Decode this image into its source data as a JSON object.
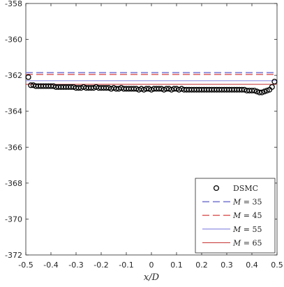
{
  "chart_data": {
    "type": "scatter",
    "title": "",
    "xlabel": "x/D",
    "ylabel": "",
    "xlim": [
      -0.5,
      0.5
    ],
    "ylim": [
      -372,
      -358
    ],
    "xticks": [
      -0.5,
      -0.4,
      -0.3,
      -0.2,
      -0.1,
      0,
      0.1,
      0.2,
      0.3,
      0.4,
      0.5
    ],
    "xtick_labels": [
      "-0.5",
      "-0.4",
      "-0.3",
      "-0.2",
      "-0.1",
      "0",
      "0.1",
      "0.2",
      "0.3",
      "0.4",
      "0.5"
    ],
    "yticks": [
      -358,
      -360,
      -362,
      -364,
      -366,
      -368,
      -370,
      -372
    ],
    "ytick_labels": [
      "-358",
      "-360",
      "-362",
      "-364",
      "-366",
      "-368",
      "-370",
      "-372"
    ],
    "grid": false,
    "legend_position": "bottom-right",
    "series": [
      {
        "name": "DSMC",
        "kind": "markers",
        "marker": "circle-open",
        "color": "#000000",
        "x": [
          -0.49,
          -0.48,
          -0.47,
          -0.46,
          -0.45,
          -0.44,
          -0.43,
          -0.42,
          -0.41,
          -0.4,
          -0.39,
          -0.38,
          -0.37,
          -0.36,
          -0.35,
          -0.34,
          -0.33,
          -0.32,
          -0.31,
          -0.3,
          -0.29,
          -0.28,
          -0.27,
          -0.26,
          -0.25,
          -0.24,
          -0.23,
          -0.22,
          -0.21,
          -0.2,
          -0.19,
          -0.18,
          -0.17,
          -0.16,
          -0.15,
          -0.14,
          -0.13,
          -0.12,
          -0.11,
          -0.1,
          -0.09,
          -0.08,
          -0.07,
          -0.06,
          -0.05,
          -0.04,
          -0.03,
          -0.02,
          -0.01,
          0.0,
          0.01,
          0.02,
          0.03,
          0.04,
          0.05,
          0.06,
          0.07,
          0.08,
          0.09,
          0.1,
          0.11,
          0.12,
          0.13,
          0.14,
          0.15,
          0.16,
          0.17,
          0.18,
          0.19,
          0.2,
          0.21,
          0.22,
          0.23,
          0.24,
          0.25,
          0.26,
          0.27,
          0.28,
          0.29,
          0.3,
          0.31,
          0.32,
          0.33,
          0.34,
          0.35,
          0.36,
          0.37,
          0.38,
          0.39,
          0.4,
          0.41,
          0.42,
          0.43,
          0.44,
          0.45,
          0.46,
          0.47,
          0.48,
          0.49
        ],
        "y": [
          -362.1,
          -362.55,
          -362.55,
          -362.6,
          -362.6,
          -362.6,
          -362.6,
          -362.6,
          -362.6,
          -362.6,
          -362.6,
          -362.65,
          -362.65,
          -362.65,
          -362.65,
          -362.65,
          -362.65,
          -362.65,
          -362.65,
          -362.7,
          -362.7,
          -362.7,
          -362.65,
          -362.7,
          -362.7,
          -362.7,
          -362.7,
          -362.65,
          -362.7,
          -362.7,
          -362.7,
          -362.7,
          -362.7,
          -362.75,
          -362.7,
          -362.75,
          -362.75,
          -362.7,
          -362.75,
          -362.75,
          -362.75,
          -362.75,
          -362.75,
          -362.75,
          -362.8,
          -362.75,
          -362.8,
          -362.75,
          -362.75,
          -362.8,
          -362.75,
          -362.75,
          -362.75,
          -362.75,
          -362.8,
          -362.75,
          -362.75,
          -362.8,
          -362.75,
          -362.75,
          -362.8,
          -362.75,
          -362.8,
          -362.8,
          -362.8,
          -362.8,
          -362.8,
          -362.8,
          -362.8,
          -362.8,
          -362.8,
          -362.8,
          -362.8,
          -362.8,
          -362.8,
          -362.8,
          -362.8,
          -362.8,
          -362.8,
          -362.8,
          -362.8,
          -362.8,
          -362.8,
          -362.8,
          -362.8,
          -362.8,
          -362.8,
          -362.85,
          -362.85,
          -362.85,
          -362.85,
          -362.9,
          -362.95,
          -362.95,
          -362.9,
          -362.85,
          -362.8,
          -362.65,
          -362.35
        ]
      },
      {
        "name": "M = 35",
        "kind": "line",
        "dash": "dashed",
        "color": "#7b7bd4",
        "x": [
          -0.5,
          0.5
        ],
        "y": [
          -361.85,
          -361.85
        ]
      },
      {
        "name": "M = 45",
        "kind": "line",
        "dash": "dashed",
        "color": "#e06c6c",
        "x": [
          -0.5,
          0.5
        ],
        "y": [
          -361.95,
          -361.95
        ]
      },
      {
        "name": "M = 55",
        "kind": "line",
        "dash": "solid",
        "color": "#8080e0",
        "x": [
          -0.5,
          0.5
        ],
        "y": [
          -362.3,
          -362.3
        ]
      },
      {
        "name": "M = 65",
        "kind": "line",
        "dash": "solid",
        "color": "#c94040",
        "x": [
          -0.5,
          0.5
        ],
        "y": [
          -362.5,
          -362.5
        ]
      }
    ],
    "legend": [
      {
        "marker": "circle-open",
        "label": "DSMC"
      },
      {
        "line": "dashed",
        "label_var": "M",
        "label_value": "35"
      },
      {
        "line": "dashed",
        "label_var": "M",
        "label_value": "45"
      },
      {
        "line": "solid",
        "label_var": "M",
        "label_value": "55"
      },
      {
        "line": "solid",
        "label_var": "M",
        "label_value": "65"
      }
    ]
  }
}
